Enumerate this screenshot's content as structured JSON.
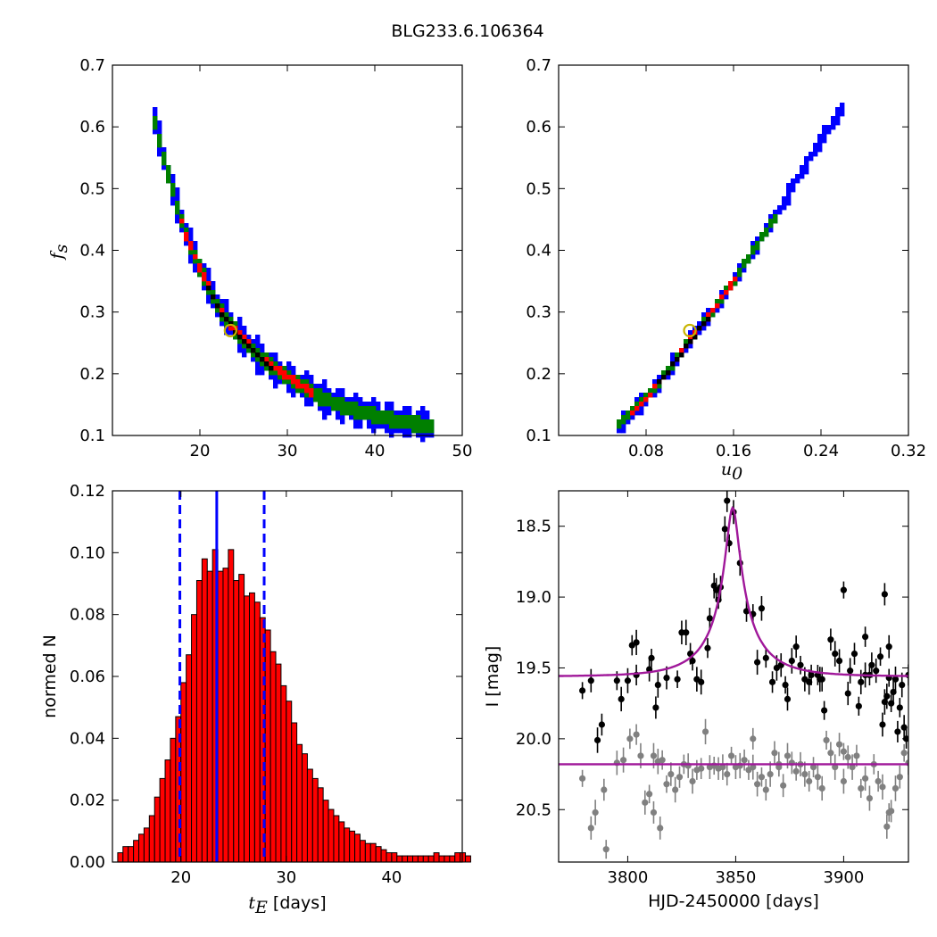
{
  "title": "BLG233.6.106364",
  "colors": {
    "blue": "#0000ff",
    "green": "#007f00",
    "red": "#ff0000",
    "black": "#000000",
    "gold": "#c8b400",
    "magenta": "#a0189a",
    "gray": "#808080"
  },
  "chart_data": [
    {
      "type": "heatmap",
      "panel": "top-left",
      "xlabel": "",
      "ylabel": "f",
      "ylabel_sub": "s",
      "xlim": [
        10,
        50
      ],
      "ylim": [
        0.1,
        0.7
      ],
      "xticks": [
        "20",
        "30",
        "40",
        "50"
      ],
      "yticks": [
        "0.1",
        "0.2",
        "0.3",
        "0.4",
        "0.5",
        "0.6",
        "0.7"
      ],
      "curve": {
        "x": [
          14.5,
          15.5,
          17,
          18.5,
          20,
          22,
          24,
          27,
          30,
          34,
          38,
          42,
          46.5
        ],
        "y": [
          0.63,
          0.57,
          0.49,
          0.42,
          0.37,
          0.31,
          0.27,
          0.225,
          0.195,
          0.16,
          0.14,
          0.125,
          0.115
        ]
      },
      "levels": [
        {
          "name": "blue",
          "halfwidth": 0.022
        },
        {
          "name": "green",
          "halfwidth": 0.012
        },
        {
          "name": "red",
          "halfwidth": 0.006,
          "x_range": [
            17.5,
            33
          ]
        },
        {
          "name": "black",
          "halfwidth": 0.002,
          "x_range": [
            20.5,
            28.5
          ]
        }
      ],
      "best_fit": {
        "x": 23.5,
        "y": 0.27
      }
    },
    {
      "type": "heatmap",
      "panel": "top-right",
      "xlabel": "u",
      "xlabel_sub": "0",
      "ylabel": "",
      "xlim": [
        0.0,
        0.32
      ],
      "ylim": [
        0.1,
        0.7
      ],
      "xticks": [
        "0.08",
        "0.16",
        "0.24",
        "0.32"
      ],
      "yticks": [
        "0.1",
        "0.2",
        "0.3",
        "0.4",
        "0.5",
        "0.6",
        "0.7"
      ],
      "curve": {
        "x": [
          0.052,
          0.08,
          0.1,
          0.12,
          0.14,
          0.16,
          0.18,
          0.2,
          0.22,
          0.24,
          0.26
        ],
        "y": [
          0.11,
          0.16,
          0.205,
          0.255,
          0.3,
          0.35,
          0.405,
          0.46,
          0.52,
          0.58,
          0.63
        ]
      },
      "levels": [
        {
          "name": "blue",
          "halfwidth": 0.012
        },
        {
          "name": "green",
          "halfwidth": 0.007,
          "x_range": [
            0.052,
            0.2
          ]
        },
        {
          "name": "red",
          "halfwidth": 0.004,
          "x_range": [
            0.065,
            0.165
          ]
        },
        {
          "name": "black",
          "halfwidth": 0.0012,
          "x_range": [
            0.09,
            0.14
          ]
        }
      ],
      "best_fit": {
        "x": 0.12,
        "y": 0.27
      }
    },
    {
      "type": "bar",
      "panel": "bottom-left",
      "xlabel": "t",
      "xlabel_sub": "E",
      "xlabel_suffix": " [days]",
      "ylabel": "normed N",
      "xlim": [
        13.5,
        46.7
      ],
      "ylim": [
        0,
        0.12
      ],
      "xticks": [
        "20",
        "30",
        "40"
      ],
      "yticks": [
        "0.00",
        "0.02",
        "0.04",
        "0.06",
        "0.08",
        "0.10",
        "0.12"
      ],
      "bin_start": 14,
      "bin_width": 0.5,
      "values": [
        0.003,
        0.005,
        0.005,
        0.007,
        0.009,
        0.011,
        0.015,
        0.021,
        0.027,
        0.033,
        0.04,
        0.047,
        0.058,
        0.067,
        0.08,
        0.091,
        0.098,
        0.094,
        0.101,
        0.094,
        0.095,
        0.101,
        0.091,
        0.093,
        0.086,
        0.087,
        0.084,
        0.079,
        0.075,
        0.068,
        0.064,
        0.057,
        0.052,
        0.045,
        0.038,
        0.035,
        0.03,
        0.027,
        0.024,
        0.02,
        0.017,
        0.015,
        0.013,
        0.011,
        0.01,
        0.009,
        0.007,
        0.006,
        0.006,
        0.005,
        0.004,
        0.003,
        0.003,
        0.002,
        0.002,
        0.002,
        0.002,
        0.002,
        0.002,
        0.002,
        0.003,
        0.002,
        0.002,
        0.002,
        0.003,
        0.003,
        0.002
      ],
      "median": 23.4,
      "interval": [
        19.9,
        27.9
      ]
    },
    {
      "type": "scatter",
      "panel": "bottom-right",
      "xlabel": "HJD-2450000 [days]",
      "ylabel": "I [mag]",
      "xlim": [
        3768,
        3930
      ],
      "ylim": [
        20.87,
        18.25
      ],
      "xticks": [
        "3800",
        "3850",
        "3900"
      ],
      "yticks": [
        "18.5",
        "19.0",
        "19.5",
        "20.0",
        "20.5"
      ],
      "model": {
        "t0": 3848.6,
        "u0": 0.12,
        "tE": 23.5,
        "baseline": 19.56,
        "fs": 0.27,
        "baseline_flat": 20.18
      },
      "series": [
        {
          "color": "black",
          "points": [
            [
              3779,
              19.66
            ],
            [
              3783,
              19.59
            ],
            [
              3786,
              20.01
            ],
            [
              3788,
              19.9
            ],
            [
              3795,
              19.59
            ],
            [
              3797,
              19.72
            ],
            [
              3800,
              19.59
            ],
            [
              3802,
              19.34
            ],
            [
              3804,
              19.55
            ],
            [
              3804,
              19.32
            ],
            [
              3810,
              19.51
            ],
            [
              3811,
              19.43
            ],
            [
              3813,
              19.78
            ],
            [
              3814,
              19.62
            ],
            [
              3818,
              19.57
            ],
            [
              3823,
              19.58
            ],
            [
              3825,
              19.25
            ],
            [
              3827,
              19.25
            ],
            [
              3829,
              19.4
            ],
            [
              3830,
              19.45
            ],
            [
              3832,
              19.58
            ],
            [
              3834,
              19.6
            ],
            [
              3837,
              19.36
            ],
            [
              3838,
              19.15
            ],
            [
              3840,
              18.92
            ],
            [
              3841,
              18.95
            ],
            [
              3842,
              19.02
            ],
            [
              3843,
              18.93
            ],
            [
              3845,
              18.52
            ],
            [
              3846,
              18.32
            ],
            [
              3847,
              18.62
            ],
            [
              3849,
              18.4
            ],
            [
              3852,
              18.76
            ],
            [
              3855,
              19.1
            ],
            [
              3858,
              19.12
            ],
            [
              3860,
              19.46
            ],
            [
              3862,
              19.08
            ],
            [
              3864,
              19.43
            ],
            [
              3867,
              19.6
            ],
            [
              3869,
              19.5
            ],
            [
              3871,
              19.48
            ],
            [
              3873,
              19.62
            ],
            [
              3874,
              19.72
            ],
            [
              3876,
              19.45
            ],
            [
              3878,
              19.35
            ],
            [
              3880,
              19.48
            ],
            [
              3882,
              19.58
            ],
            [
              3884,
              19.6
            ],
            [
              3885,
              19.55
            ],
            [
              3888,
              19.55
            ],
            [
              3889,
              19.58
            ],
            [
              3890,
              19.58
            ],
            [
              3891,
              19.8
            ],
            [
              3894,
              19.3
            ],
            [
              3896,
              19.4
            ],
            [
              3898,
              19.45
            ],
            [
              3900,
              18.95
            ],
            [
              3902,
              19.68
            ],
            [
              3903,
              19.52
            ],
            [
              3905,
              19.4
            ],
            [
              3907,
              19.77
            ],
            [
              3908,
              19.6
            ],
            [
              3910,
              19.55
            ],
            [
              3910,
              19.28
            ],
            [
              3912,
              19.55
            ],
            [
              3913,
              19.48
            ],
            [
              3915,
              19.52
            ],
            [
              3917,
              19.42
            ],
            [
              3919,
              18.98
            ],
            [
              3919,
              19.74
            ],
            [
              3921,
              19.35
            ],
            [
              3922,
              19.75
            ],
            [
              3923,
              19.67
            ],
            [
              3924,
              19.58
            ],
            [
              3925,
              19.95
            ],
            [
              3926,
              19.78
            ],
            [
              3927,
              19.62
            ],
            [
              3928,
              19.92
            ],
            [
              3929,
              20.0
            ],
            [
              3930,
              19.55
            ],
            [
              3920,
              19.7
            ],
            [
              3918,
              19.9
            ],
            [
              3921,
              19.57
            ]
          ]
        },
        {
          "color": "gray",
          "points": [
            [
              3779,
              20.28
            ],
            [
              3783,
              20.63
            ],
            [
              3785,
              20.52
            ],
            [
              3789,
              20.36
            ],
            [
              3790,
              20.78
            ],
            [
              3795,
              20.17
            ],
            [
              3798,
              20.15
            ],
            [
              3801,
              20.0
            ],
            [
              3804,
              19.97
            ],
            [
              3806,
              20.12
            ],
            [
              3808,
              20.45
            ],
            [
              3810,
              20.39
            ],
            [
              3812,
              20.52
            ],
            [
              3814,
              20.16
            ],
            [
              3815,
              20.63
            ],
            [
              3818,
              20.32
            ],
            [
              3820,
              20.25
            ],
            [
              3822,
              20.36
            ],
            [
              3824,
              20.27
            ],
            [
              3826,
              20.18
            ],
            [
              3828,
              20.19
            ],
            [
              3830,
              20.3
            ],
            [
              3832,
              20.22
            ],
            [
              3834,
              20.21
            ],
            [
              3836,
              19.95
            ],
            [
              3838,
              20.2
            ],
            [
              3840,
              20.19
            ],
            [
              3842,
              20.21
            ],
            [
              3844,
              20.2
            ],
            [
              3846,
              20.25
            ],
            [
              3848,
              20.12
            ],
            [
              3850,
              20.2
            ],
            [
              3852,
              20.19
            ],
            [
              3854,
              20.15
            ],
            [
              3856,
              20.22
            ],
            [
              3858,
              20.2
            ],
            [
              3860,
              20.32
            ],
            [
              3862,
              20.27
            ],
            [
              3864,
              20.36
            ],
            [
              3866,
              20.25
            ],
            [
              3868,
              20.1
            ],
            [
              3870,
              20.2
            ],
            [
              3872,
              20.33
            ],
            [
              3874,
              20.12
            ],
            [
              3876,
              20.17
            ],
            [
              3878,
              20.23
            ],
            [
              3880,
              20.18
            ],
            [
              3882,
              20.25
            ],
            [
              3884,
              20.3
            ],
            [
              3886,
              20.2
            ],
            [
              3888,
              20.27
            ],
            [
              3890,
              20.35
            ],
            [
              3892,
              20.01
            ],
            [
              3894,
              20.1
            ],
            [
              3896,
              20.2
            ],
            [
              3898,
              20.04
            ],
            [
              3900,
              20.09
            ],
            [
              3902,
              20.13
            ],
            [
              3904,
              20.2
            ],
            [
              3906,
              20.12
            ],
            [
              3908,
              20.35
            ],
            [
              3910,
              20.28
            ],
            [
              3912,
              20.42
            ],
            [
              3914,
              20.18
            ],
            [
              3916,
              20.3
            ],
            [
              3918,
              20.34
            ],
            [
              3920,
              20.62
            ],
            [
              3921,
              20.52
            ],
            [
              3922,
              20.51
            ],
            [
              3924,
              20.35
            ],
            [
              3926,
              20.27
            ],
            [
              3928,
              20.1
            ],
            [
              3930,
              20.17
            ],
            [
              3812,
              20.12
            ],
            [
              3858,
              20.0
            ],
            [
              3816,
              20.15
            ],
            [
              3870,
              20.18
            ],
            [
              3900,
              20.3
            ]
          ]
        }
      ]
    }
  ]
}
